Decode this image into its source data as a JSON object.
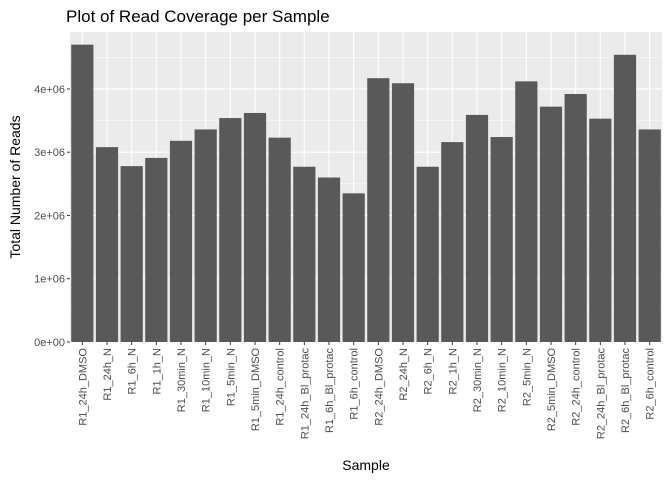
{
  "chart_data": {
    "type": "bar",
    "title": "Plot of Read Coverage per Sample",
    "xlabel": "Sample",
    "ylabel": "Total Number of Reads",
    "ylim": [
      0,
      4900000
    ],
    "y_ticks": [
      0,
      1000000,
      2000000,
      3000000,
      4000000
    ],
    "y_tick_labels": [
      "0e+00",
      "1e+06",
      "2e+06",
      "3e+06",
      "4e+06"
    ],
    "grid": true,
    "panel_background": "#ebebeb",
    "grid_color": "#ffffff",
    "bar_color": "#595959",
    "categories": [
      "R1_24h_DMSO",
      "R1_24h_N",
      "R1_6h_N",
      "R1_1h_N",
      "R1_30min_N",
      "R1_10min_N",
      "R1_5min_N",
      "R1_5min_DMSO",
      "R1_24h_control",
      "R1_24h_Bl_protac",
      "R1_6h_Bl_protac",
      "R1_6h_control",
      "R2_24h_DMSO",
      "R2_24h_N",
      "R2_6h_N",
      "R2_1h_N",
      "R2_30min_N",
      "R2_10min_N",
      "R2_5min_N",
      "R2_5min_DMSO",
      "R2_24h_control",
      "R2_24h_Bl_protac",
      "R2_6h_Bl_protac",
      "R2_6h_control"
    ],
    "values": [
      4700000,
      3080000,
      2780000,
      2910000,
      3180000,
      3360000,
      3540000,
      3620000,
      3230000,
      2770000,
      2600000,
      2350000,
      4170000,
      4090000,
      2770000,
      3160000,
      3590000,
      3240000,
      4120000,
      3720000,
      3920000,
      3530000,
      4540000,
      3360000
    ]
  }
}
